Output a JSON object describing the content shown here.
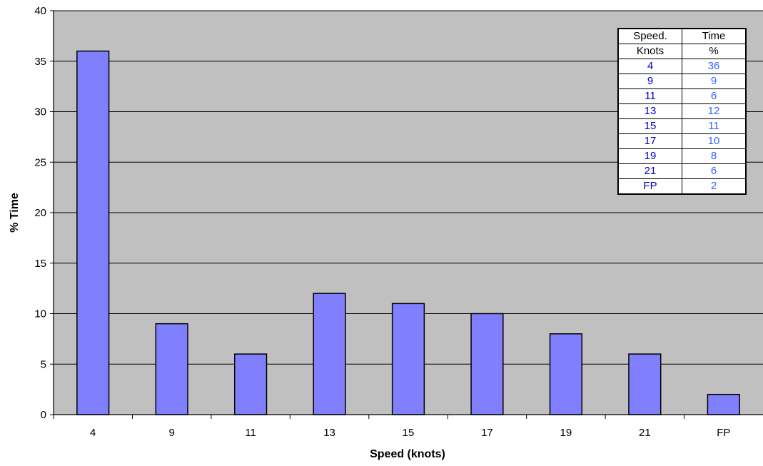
{
  "chart_data": {
    "type": "bar",
    "title": "",
    "xlabel": "Speed (knots)",
    "ylabel": "% Time",
    "categories": [
      "4",
      "9",
      "11",
      "13",
      "15",
      "17",
      "19",
      "21",
      "FP"
    ],
    "values": [
      36,
      9,
      6,
      12,
      11,
      10,
      8,
      6,
      2
    ],
    "ylim": [
      0,
      40
    ],
    "yticks": [
      0,
      5,
      10,
      15,
      20,
      25,
      30,
      35,
      40
    ],
    "grid": true,
    "colors": {
      "bar": "#8080ff",
      "plot_background": "#c0c0c0"
    }
  },
  "table": {
    "headers": [
      [
        "Speed.",
        "Time"
      ],
      [
        "Knots",
        "%"
      ]
    ],
    "rows": [
      [
        "4",
        "36"
      ],
      [
        "9",
        "9"
      ],
      [
        "11",
        "6"
      ],
      [
        "13",
        "12"
      ],
      [
        "15",
        "11"
      ],
      [
        "17",
        "10"
      ],
      [
        "19",
        "8"
      ],
      [
        "21",
        "6"
      ],
      [
        "FP",
        "2"
      ]
    ]
  }
}
